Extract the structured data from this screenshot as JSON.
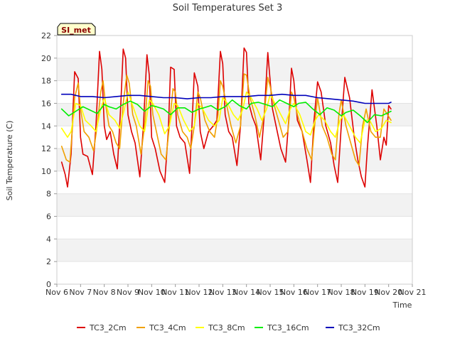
{
  "chart_data": {
    "type": "line",
    "title": "Soil Temperatures Set 3",
    "xlabel": "Time",
    "ylabel": "Soil Temperature (C)",
    "site_label": "SI_met",
    "ylim": [
      0,
      22
    ],
    "yticks": [
      0,
      2,
      4,
      6,
      8,
      10,
      12,
      14,
      16,
      18,
      20,
      22
    ],
    "xlim": [
      6,
      21
    ],
    "xtick_values": [
      6,
      7,
      8,
      9,
      10,
      11,
      12,
      13,
      14,
      15,
      16,
      17,
      18,
      19,
      20,
      21
    ],
    "xtick_labels": [
      "Nov 6",
      "Nov 7",
      "Nov 8",
      "Nov 9",
      "Nov 10",
      "Nov 11",
      "Nov 12",
      "Nov 13",
      "Nov 14",
      "Nov 15",
      "Nov 16",
      "Nov 17",
      "Nov 18",
      "Nov 19",
      "Nov 20",
      "Nov 21"
    ],
    "grid": false,
    "banded_background": true,
    "legend_position": "bottom",
    "series": [
      {
        "name": "TC3_2Cm",
        "color": "#dd0000",
        "x": [
          6.2,
          6.35,
          6.45,
          6.6,
          6.75,
          6.9,
          7.0,
          7.1,
          7.3,
          7.5,
          7.65,
          7.8,
          7.9,
          8.0,
          8.1,
          8.25,
          8.4,
          8.55,
          8.7,
          8.8,
          8.9,
          9.0,
          9.15,
          9.3,
          9.5,
          9.65,
          9.8,
          9.9,
          10.0,
          10.15,
          10.35,
          10.55,
          10.7,
          10.8,
          10.95,
          11.05,
          11.2,
          11.4,
          11.6,
          11.7,
          11.8,
          11.95,
          12.05,
          12.2,
          12.4,
          12.6,
          12.75,
          12.9,
          13.0,
          13.1,
          13.25,
          13.4,
          13.6,
          13.75,
          13.9,
          14.0,
          14.1,
          14.25,
          14.4,
          14.6,
          14.75,
          14.9,
          15.0,
          15.1,
          15.25,
          15.45,
          15.65,
          15.8,
          15.9,
          16.0,
          16.15,
          16.35,
          16.55,
          16.7,
          16.85,
          17.0,
          17.15,
          17.35,
          17.55,
          17.7,
          17.85,
          18.0,
          18.15,
          18.35,
          18.55,
          18.7,
          18.85,
          19.0,
          19.1,
          19.3,
          19.5,
          19.65,
          19.8,
          19.9,
          20.0,
          20.1
        ],
        "y": [
          10.8,
          9.7,
          8.6,
          11.5,
          18.8,
          18.2,
          13.0,
          11.5,
          11.3,
          9.7,
          14.0,
          20.6,
          19.0,
          14.0,
          12.8,
          13.5,
          11.5,
          10.2,
          16.0,
          20.8,
          20.0,
          15.0,
          13.5,
          12.5,
          9.5,
          14.0,
          20.3,
          18.5,
          13.0,
          12.0,
          10.0,
          9.0,
          13.5,
          19.2,
          19.0,
          14.0,
          13.0,
          12.5,
          9.8,
          14.0,
          18.7,
          17.5,
          13.5,
          12.0,
          13.5,
          14.0,
          14.5,
          20.6,
          19.5,
          15.0,
          13.5,
          13.0,
          10.5,
          14.0,
          20.9,
          20.5,
          16.0,
          14.8,
          14.0,
          11.0,
          15.0,
          20.5,
          18.0,
          15.5,
          14.0,
          12.0,
          10.8,
          15.0,
          19.1,
          18.0,
          14.5,
          13.5,
          11.0,
          9.0,
          14.5,
          17.9,
          17.0,
          14.0,
          12.5,
          10.5,
          9.0,
          14.0,
          18.3,
          16.5,
          13.0,
          11.0,
          9.5,
          8.6,
          12.0,
          17.2,
          14.0,
          11.0,
          13.0,
          12.3,
          15.8,
          15.5
        ]
      },
      {
        "name": "TC3_4Cm",
        "color": "#f0a000",
        "x": [
          6.2,
          6.4,
          6.55,
          6.75,
          6.9,
          7.0,
          7.15,
          7.35,
          7.55,
          7.7,
          7.85,
          7.95,
          8.05,
          8.2,
          8.35,
          8.5,
          8.65,
          8.8,
          8.95,
          9.05,
          9.2,
          9.35,
          9.55,
          9.7,
          9.85,
          9.95,
          10.05,
          10.2,
          10.4,
          10.6,
          10.75,
          10.9,
          11.0,
          11.1,
          11.3,
          11.5,
          11.65,
          11.8,
          11.95,
          12.05,
          12.25,
          12.45,
          12.65,
          12.8,
          12.9,
          13.0,
          13.15,
          13.35,
          13.55,
          13.75,
          13.9,
          14.0,
          14.15,
          14.35,
          14.55,
          14.75,
          14.9,
          15.0,
          15.15,
          15.35,
          15.55,
          15.75,
          15.9,
          16.0,
          16.15,
          16.35,
          16.55,
          16.75,
          16.9,
          17.0,
          17.2,
          17.4,
          17.6,
          17.75,
          17.9,
          18.0,
          18.2,
          18.4,
          18.6,
          18.75,
          18.9,
          19.05,
          19.25,
          19.45,
          19.65,
          19.8,
          19.95,
          20.1
        ],
        "y": [
          12.2,
          11.0,
          10.8,
          16.5,
          17.8,
          15.5,
          13.5,
          13.0,
          11.8,
          14.0,
          17.0,
          18.0,
          16.0,
          14.0,
          13.5,
          12.5,
          12.0,
          16.0,
          18.5,
          17.8,
          15.0,
          14.0,
          11.5,
          14.0,
          18.0,
          17.5,
          15.0,
          13.5,
          11.5,
          11.0,
          14.0,
          17.3,
          17.0,
          15.0,
          13.5,
          13.0,
          12.0,
          14.0,
          17.0,
          16.5,
          14.5,
          13.5,
          13.0,
          15.0,
          18.0,
          17.5,
          16.0,
          14.0,
          12.5,
          14.0,
          18.6,
          18.5,
          16.5,
          15.0,
          13.0,
          15.0,
          18.3,
          17.5,
          16.0,
          14.5,
          13.0,
          13.5,
          17.0,
          16.5,
          15.0,
          13.5,
          12.0,
          11.0,
          14.5,
          16.5,
          14.0,
          13.0,
          11.5,
          11.0,
          15.0,
          16.3,
          14.0,
          12.5,
          11.0,
          10.5,
          14.0,
          15.5,
          13.5,
          13.0,
          13.0,
          15.5,
          15.0,
          14.5
        ]
      },
      {
        "name": "TC3_8Cm",
        "color": "#ffff00",
        "x": [
          6.2,
          6.45,
          6.6,
          6.8,
          7.0,
          7.2,
          7.45,
          7.65,
          7.85,
          8.0,
          8.2,
          8.45,
          8.65,
          8.85,
          9.0,
          9.25,
          9.5,
          9.7,
          9.9,
          10.05,
          10.3,
          10.55,
          10.75,
          10.95,
          11.1,
          11.35,
          11.6,
          11.8,
          11.95,
          12.15,
          12.4,
          12.65,
          12.85,
          13.0,
          13.2,
          13.45,
          13.65,
          13.85,
          14.0,
          14.2,
          14.45,
          14.65,
          14.85,
          15.0,
          15.2,
          15.45,
          15.65,
          15.85,
          16.0,
          16.25,
          16.5,
          16.7,
          16.9,
          17.05,
          17.3,
          17.55,
          17.75,
          17.95,
          18.1,
          18.35,
          18.6,
          18.8,
          19.0,
          19.2,
          19.45,
          19.7,
          19.9,
          20.1
        ],
        "y": [
          13.8,
          13.0,
          13.5,
          16.0,
          15.8,
          14.5,
          14.0,
          13.5,
          15.5,
          16.5,
          15.0,
          14.5,
          13.8,
          15.5,
          17.0,
          15.5,
          14.0,
          13.5,
          16.3,
          16.0,
          15.0,
          13.3,
          14.0,
          16.0,
          15.8,
          14.5,
          13.5,
          14.0,
          16.0,
          15.5,
          14.5,
          14.0,
          14.5,
          16.5,
          16.0,
          15.0,
          14.5,
          15.5,
          17.0,
          16.5,
          15.5,
          14.5,
          15.5,
          16.8,
          16.0,
          15.0,
          14.2,
          15.5,
          16.0,
          15.0,
          13.5,
          13.2,
          14.5,
          15.0,
          14.5,
          13.5,
          13.0,
          14.5,
          15.0,
          14.0,
          13.0,
          12.5,
          14.5,
          14.5,
          13.5,
          13.8,
          14.5,
          14.3
        ]
      },
      {
        "name": "TC3_16Cm",
        "color": "#00ee00",
        "x": [
          6.2,
          6.5,
          6.8,
          7.1,
          7.4,
          7.7,
          8.0,
          8.2,
          8.5,
          8.8,
          9.1,
          9.4,
          9.7,
          10.0,
          10.2,
          10.5,
          10.8,
          11.1,
          11.4,
          11.7,
          12.0,
          12.2,
          12.5,
          12.8,
          13.1,
          13.4,
          13.7,
          14.0,
          14.2,
          14.5,
          14.8,
          15.1,
          15.4,
          15.7,
          16.0,
          16.2,
          16.5,
          16.8,
          17.1,
          17.4,
          17.7,
          18.0,
          18.2,
          18.5,
          18.8,
          19.1,
          19.4,
          19.7,
          20.0,
          20.1
        ],
        "y": [
          15.5,
          14.9,
          15.3,
          15.7,
          15.4,
          15.1,
          15.9,
          15.7,
          15.5,
          15.9,
          16.2,
          15.9,
          15.3,
          15.8,
          15.7,
          15.5,
          15.0,
          15.6,
          15.6,
          15.2,
          15.5,
          15.6,
          15.8,
          15.4,
          15.7,
          16.3,
          15.8,
          15.5,
          16.0,
          16.1,
          15.9,
          15.7,
          16.3,
          16.0,
          15.7,
          16.0,
          16.1,
          15.5,
          15.0,
          15.6,
          15.4,
          14.9,
          15.2,
          15.4,
          14.9,
          14.3,
          15.0,
          14.9,
          15.2,
          15.3
        ]
      },
      {
        "name": "TC3_32Cm",
        "color": "#0000bb",
        "x": [
          6.2,
          6.6,
          7.0,
          7.5,
          8.0,
          8.5,
          9.0,
          9.5,
          10.0,
          10.5,
          11.0,
          11.5,
          12.0,
          12.5,
          13.0,
          13.5,
          14.0,
          14.5,
          15.0,
          15.5,
          16.0,
          16.5,
          17.0,
          17.5,
          18.0,
          18.5,
          19.0,
          19.5,
          20.0,
          20.1
        ],
        "y": [
          16.8,
          16.8,
          16.6,
          16.6,
          16.5,
          16.6,
          16.7,
          16.7,
          16.6,
          16.5,
          16.5,
          16.4,
          16.5,
          16.5,
          16.6,
          16.6,
          16.6,
          16.7,
          16.7,
          16.8,
          16.7,
          16.7,
          16.5,
          16.4,
          16.3,
          16.2,
          16.0,
          16.0,
          16.0,
          16.1
        ]
      }
    ]
  }
}
